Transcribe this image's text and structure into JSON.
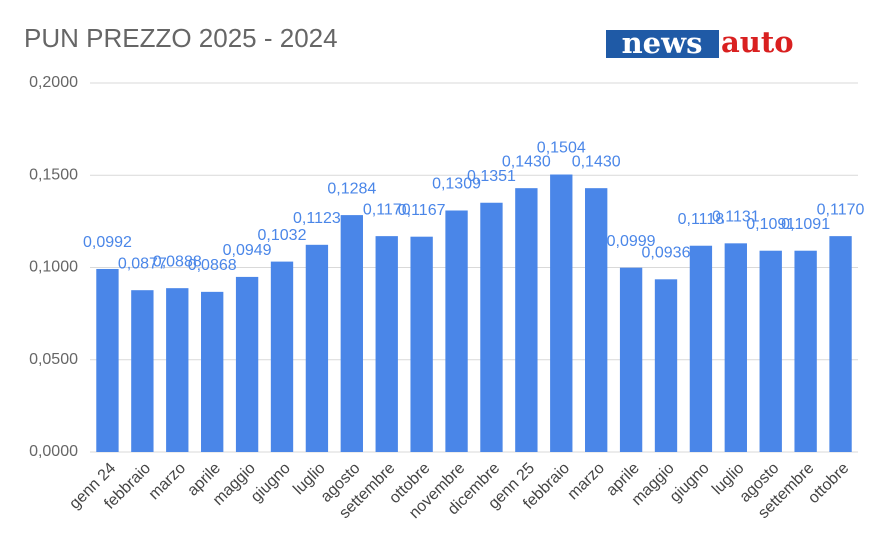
{
  "logo": {
    "news": "news",
    "auto": "auto"
  },
  "chart_data": {
    "type": "bar",
    "title": "PUN PREZZO 2025 - 2024",
    "categories": [
      "genn 24",
      "febbraio",
      "marzo",
      "aprile",
      "maggio",
      "giugno",
      "luglio",
      "agosto",
      "settembre",
      "ottobre",
      "novembre",
      "dicembre",
      "genn 25",
      "febbraio",
      "marzo",
      "aprile",
      "maggio",
      "giugno",
      "luglio",
      "agosto",
      "settembre",
      "ottobre"
    ],
    "values": [
      0.0992,
      0.0877,
      0.0888,
      0.0868,
      0.0949,
      0.1032,
      0.1123,
      0.1284,
      0.117,
      0.1167,
      0.1309,
      0.1351,
      0.143,
      0.1504,
      0.143,
      0.0999,
      0.0936,
      0.1118,
      0.1131,
      0.1091,
      0.1091,
      0.117
    ],
    "value_labels": [
      "0,0992",
      "0,0877",
      "0,0888",
      "0,0868",
      "0,0949",
      "0,1032",
      "0,1123",
      "0,1284",
      "0,1170",
      "0,1167",
      "0,1309",
      "0,1351",
      "0,1430",
      "0,1504",
      "0,1430",
      "0,0999",
      "0,0936",
      "0,1118",
      "0,1131",
      "0,1091",
      "0,1091",
      "0,1170"
    ],
    "color": "#4a86e8",
    "ylim": [
      0,
      0.2
    ],
    "yticks": [
      {
        "value": 0,
        "label": "0,0000"
      },
      {
        "value": 0.05,
        "label": "0,0500"
      },
      {
        "value": 0.1,
        "label": "0,1000"
      },
      {
        "value": 0.15,
        "label": "0,1500"
      },
      {
        "value": 0.2,
        "label": "0,2000"
      }
    ],
    "grid": true
  }
}
